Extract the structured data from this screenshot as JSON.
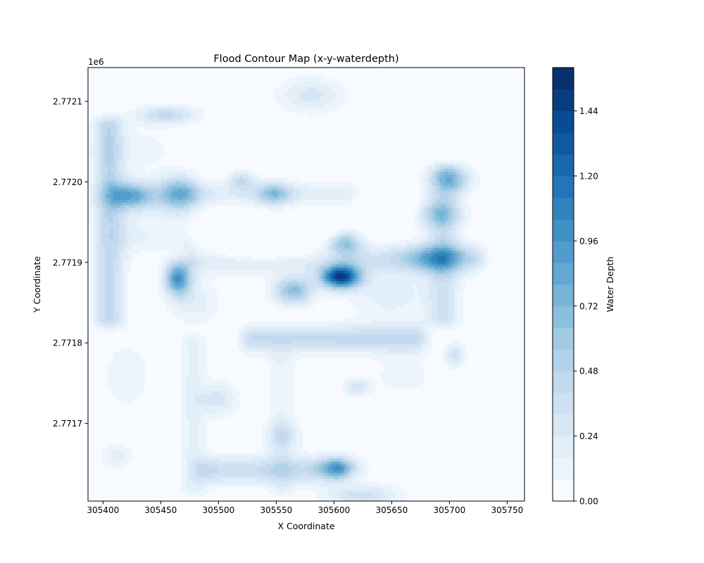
{
  "chart_data": {
    "type": "heatmap",
    "subtype": "filled-contour",
    "title": "Flood Contour Map (x-y-waterdepth)",
    "xlabel": "X Coordinate",
    "ylabel": "Y Coordinate",
    "y_offset_label": "1e6",
    "xlim": [
      305387,
      305765
    ],
    "ylim": [
      2771603.5,
      2772142
    ],
    "x_ticks": [
      305400,
      305450,
      305500,
      305550,
      305600,
      305650,
      305700,
      305750
    ],
    "x_tick_labels": [
      "305400",
      "305450",
      "305500",
      "305550",
      "305600",
      "305650",
      "305700",
      "305750"
    ],
    "y_ticks": [
      2771700,
      2771800,
      2771900,
      2772000,
      2772100
    ],
    "y_tick_labels": [
      "2.7717",
      "2.7718",
      "2.7719",
      "2.7720",
      "2.7721"
    ],
    "colormap": "Blues",
    "colorbar": {
      "label": "Water Depth",
      "range": [
        0,
        1.6
      ],
      "levels": [
        0,
        0.08,
        0.16,
        0.24,
        0.32,
        0.4,
        0.48,
        0.56,
        0.64,
        0.72,
        0.8,
        0.88,
        0.96,
        1.04,
        1.12,
        1.2,
        1.28,
        1.36,
        1.44,
        1.52,
        1.6
      ],
      "ticks": [
        0,
        0.24,
        0.48,
        0.72,
        0.96,
        1.2,
        1.44
      ],
      "tick_labels": [
        "0.00",
        "0.24",
        "0.48",
        "0.72",
        "0.96",
        "1.20",
        "1.44"
      ]
    },
    "features": [
      {
        "shape": "hband",
        "x": [
          305480,
          305720
        ],
        "y": 2771905,
        "sy": 12,
        "depth": 0.34
      },
      {
        "shape": "hband",
        "x": [
          305530,
          305670
        ],
        "y": 2771805,
        "sy": 12,
        "depth": 0.42
      },
      {
        "shape": "hband",
        "x": [
          305490,
          305600
        ],
        "y": 2771642,
        "sy": 12,
        "depth": 0.4
      },
      {
        "shape": "hband",
        "x": [
          305480,
          305610
        ],
        "y": 2771985,
        "sy": 10,
        "depth": 0.22
      },
      {
        "shape": "hband",
        "x": [
          305420,
          305470
        ],
        "y": 2771935,
        "sy": 20,
        "depth": 0.18
      },
      {
        "shape": "vband",
        "y": [
          2771830,
          2772070
        ],
        "x": 305405,
        "sx": 9,
        "depth": 0.45
      },
      {
        "shape": "vband",
        "y": [
          2771830,
          2772010
        ],
        "x": 305695,
        "sx": 10,
        "depth": 0.32
      },
      {
        "shape": "vband",
        "y": [
          2771620,
          2771800
        ],
        "x": 305478,
        "sx": 8,
        "depth": 0.18
      },
      {
        "shape": "vband",
        "y": [
          2771620,
          2771780
        ],
        "x": 305555,
        "sx": 8,
        "depth": 0.15
      },
      {
        "shape": "spot",
        "x": 305425,
        "y": 2771983,
        "sx": 15,
        "sy": 12,
        "depth": 0.85
      },
      {
        "shape": "spot",
        "x": 305465,
        "y": 2771985,
        "sx": 12,
        "sy": 15,
        "depth": 0.78
      },
      {
        "shape": "spot",
        "x": 305465,
        "y": 2771880,
        "sx": 8,
        "sy": 15,
        "depth": 0.95
      },
      {
        "shape": "spot",
        "x": 305606,
        "y": 2771882,
        "sx": 12,
        "sy": 10,
        "depth": 1.45
      },
      {
        "shape": "spot",
        "x": 305565,
        "y": 2771865,
        "sx": 12,
        "sy": 12,
        "depth": 0.68
      },
      {
        "shape": "spot",
        "x": 305610,
        "y": 2771925,
        "sx": 10,
        "sy": 12,
        "depth": 0.62
      },
      {
        "shape": "spot",
        "x": 305688,
        "y": 2771905,
        "sx": 18,
        "sy": 12,
        "depth": 0.52
      },
      {
        "shape": "spot",
        "x": 305702,
        "y": 2772003,
        "sx": 12,
        "sy": 12,
        "depth": 0.55
      },
      {
        "shape": "spot",
        "x": 305690,
        "y": 2771960,
        "sx": 14,
        "sy": 12,
        "depth": 0.46
      },
      {
        "shape": "spot",
        "x": 305548,
        "y": 2771985,
        "sx": 10,
        "sy": 10,
        "depth": 0.52
      },
      {
        "shape": "spot",
        "x": 305520,
        "y": 2772002,
        "sx": 8,
        "sy": 8,
        "depth": 0.38
      },
      {
        "shape": "spot",
        "x": 305455,
        "y": 2772083,
        "sx": 18,
        "sy": 8,
        "depth": 0.42
      },
      {
        "shape": "spot",
        "x": 305580,
        "y": 2772108,
        "sx": 20,
        "sy": 15,
        "depth": 0.28
      },
      {
        "shape": "spot",
        "x": 305605,
        "y": 2771645,
        "sx": 12,
        "sy": 9,
        "depth": 0.66
      },
      {
        "shape": "spot",
        "x": 305625,
        "y": 2771610,
        "sx": 22,
        "sy": 10,
        "depth": 0.36
      },
      {
        "shape": "spot",
        "x": 305705,
        "y": 2771785,
        "sx": 6,
        "sy": 10,
        "depth": 0.34
      },
      {
        "shape": "spot",
        "x": 305620,
        "y": 2771745,
        "sx": 8,
        "sy": 8,
        "depth": 0.3
      },
      {
        "shape": "spot",
        "x": 305555,
        "y": 2771685,
        "sx": 10,
        "sy": 12,
        "depth": 0.3
      },
      {
        "shape": "spot",
        "x": 305500,
        "y": 2771730,
        "sx": 12,
        "sy": 15,
        "depth": 0.28
      },
      {
        "shape": "spot",
        "x": 305412,
        "y": 2771660,
        "sx": 10,
        "sy": 10,
        "depth": 0.2
      },
      {
        "shape": "spot",
        "x": 305480,
        "y": 2771850,
        "sx": 15,
        "sy": 20,
        "depth": 0.2
      },
      {
        "shape": "spot",
        "x": 305650,
        "y": 2771860,
        "sx": 25,
        "sy": 25,
        "depth": 0.2
      },
      {
        "shape": "spot",
        "x": 305420,
        "y": 2771760,
        "sx": 15,
        "sy": 30,
        "depth": 0.15
      },
      {
        "shape": "spot",
        "x": 305430,
        "y": 2772040,
        "sx": 25,
        "sy": 20,
        "depth": 0.12
      },
      {
        "shape": "spot",
        "x": 305660,
        "y": 2771760,
        "sx": 20,
        "sy": 20,
        "depth": 0.12
      },
      {
        "shape": "spot",
        "x": 305540,
        "y": 2771910,
        "sx": 50,
        "sy": 8,
        "depth": -0.3
      },
      {
        "shape": "spot",
        "x": 305545,
        "y": 2771940,
        "sx": 45,
        "sy": 10,
        "depth": -0.4
      },
      {
        "shape": "spot",
        "x": 305650,
        "y": 2771967,
        "sx": 15,
        "sy": 10,
        "depth": -0.3
      }
    ]
  }
}
